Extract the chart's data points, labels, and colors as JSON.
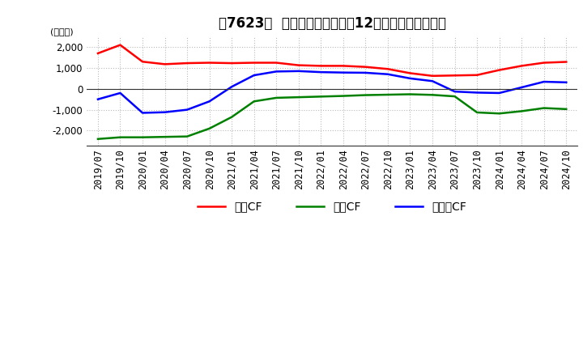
{
  "title": "[7623]  キャッシュフローの12か月移動合計の推移",
  "title_prefix": "　7623　",
  "title_main": "キャッシュフローの12か月移動合計の推移",
  "ylabel": "(百万円)",
  "ylim": [
    -2700,
    2500
  ],
  "yticks": [
    -2000,
    -1000,
    0,
    1000,
    2000
  ],
  "background_color": "#ffffff",
  "grid_color": "#bbbbbb",
  "series": {
    "営業CF": {
      "color": "#ff0000",
      "data": {
        "2019/07": 1700,
        "2019/10": 2100,
        "2020/01": 1300,
        "2020/04": 1180,
        "2020/07": 1230,
        "2020/10": 1250,
        "2021/01": 1230,
        "2021/04": 1250,
        "2021/07": 1250,
        "2021/10": 1130,
        "2022/01": 1100,
        "2022/04": 1100,
        "2022/07": 1050,
        "2022/10": 950,
        "2023/01": 750,
        "2023/04": 620,
        "2023/07": 640,
        "2023/10": 660,
        "2024/01": 900,
        "2024/04": 1100,
        "2024/07": 1250,
        "2024/10": 1290
      }
    },
    "投資CF": {
      "color": "#008000",
      "data": {
        "2019/07": -2400,
        "2019/10": -2320,
        "2020/01": -2320,
        "2020/04": -2300,
        "2020/07": -2280,
        "2020/10": -1900,
        "2021/01": -1350,
        "2021/04": -600,
        "2021/07": -430,
        "2021/10": -400,
        "2022/01": -370,
        "2022/04": -340,
        "2022/07": -300,
        "2022/10": -280,
        "2023/01": -260,
        "2023/04": -290,
        "2023/07": -360,
        "2023/10": -1130,
        "2024/01": -1180,
        "2024/04": -1070,
        "2024/07": -920,
        "2024/10": -970
      }
    },
    "フリーCF": {
      "color": "#0000ff",
      "data": {
        "2019/07": -500,
        "2019/10": -200,
        "2020/01": -1150,
        "2020/04": -1120,
        "2020/07": -1000,
        "2020/10": -600,
        "2021/01": 100,
        "2021/04": 650,
        "2021/07": 830,
        "2021/10": 850,
        "2022/01": 800,
        "2022/04": 780,
        "2022/07": 770,
        "2022/10": 700,
        "2023/01": 500,
        "2023/04": 370,
        "2023/07": -130,
        "2023/10": -180,
        "2024/01": -200,
        "2024/04": 70,
        "2024/07": 340,
        "2024/10": 310
      }
    }
  },
  "legend_labels": [
    "営業CF",
    "投資CF",
    "フリーCF"
  ],
  "legend_display": [
    "営業CF",
    "投資CF",
    "フリーCF"
  ],
  "line_width": 1.8,
  "title_fontsize": 12,
  "axis_fontsize": 8.5,
  "ylabel_fontsize": 8
}
